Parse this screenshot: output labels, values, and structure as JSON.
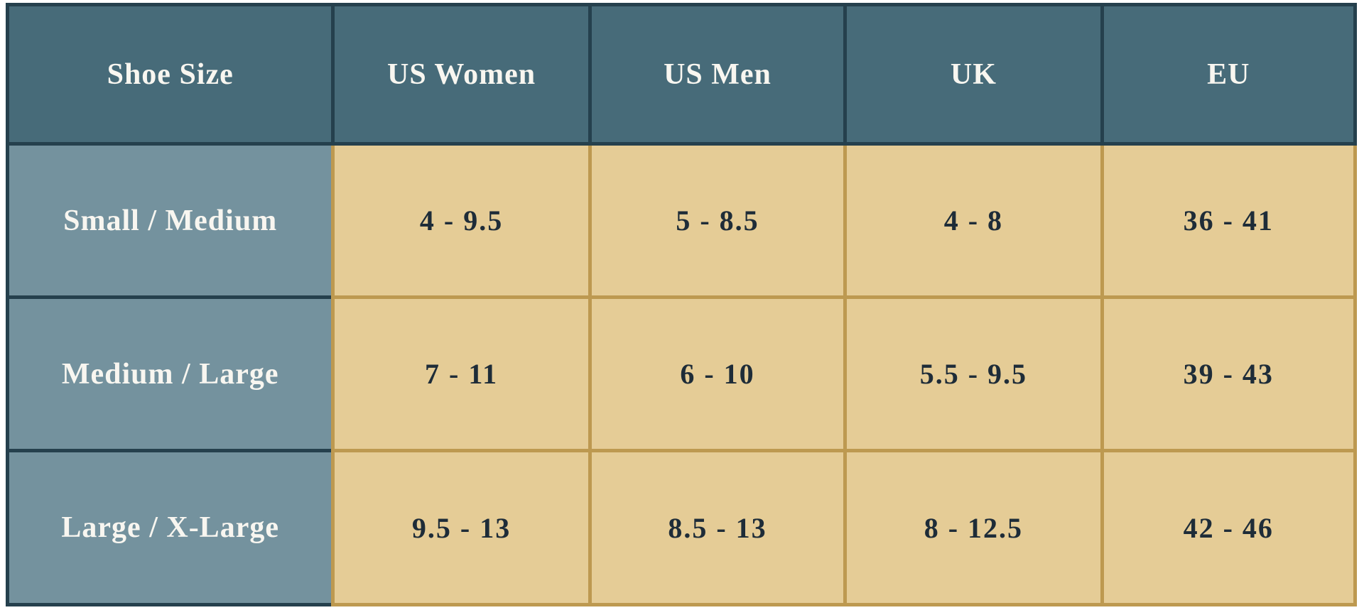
{
  "colors": {
    "header_bg": "#476b79",
    "label_bg": "#74929e",
    "data_bg": "#e5cc96",
    "navy_border": "#25404d",
    "gold_border": "#bd9950",
    "light_text": "#f8f6f0",
    "dark_text": "#1e2c38"
  },
  "chart_data": {
    "type": "table",
    "columns": [
      "Shoe Size",
      "US Women",
      "US Men",
      "UK",
      "EU"
    ],
    "rows": [
      [
        "Small / Medium",
        "4 - 9.5",
        "5 - 8.5",
        "4 - 8",
        "36 - 41"
      ],
      [
        "Medium / Large",
        "7 - 11",
        "6 - 10",
        "5.5 - 9.5",
        "39 - 43"
      ],
      [
        "Large / X-Large",
        "9.5 - 13",
        "8.5 - 13",
        "8 - 12.5",
        "42 - 46"
      ]
    ]
  }
}
